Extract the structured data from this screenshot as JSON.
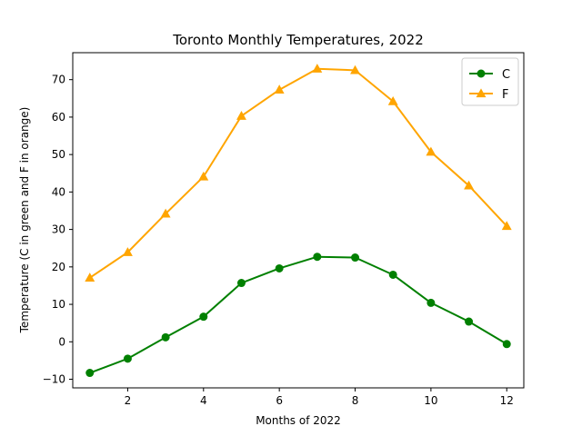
{
  "chart_data": {
    "type": "line",
    "title": "Toronto Monthly Temperatures, 2022",
    "xlabel": "Months of 2022",
    "ylabel": "Temperature (C in green and F in orange)",
    "xlim": [
      0.55,
      12.45
    ],
    "ylim": [
      -12.3,
      77.2
    ],
    "xticks": [
      2,
      4,
      6,
      8,
      10,
      12
    ],
    "yticks": [
      -10,
      0,
      10,
      20,
      30,
      40,
      50,
      60,
      70
    ],
    "grid": false,
    "legend_position": "top-right",
    "x": [
      1,
      2,
      3,
      4,
      5,
      6,
      7,
      8,
      9,
      10,
      11,
      12
    ],
    "series": [
      {
        "name": "C",
        "color": "#008000",
        "marker": "circle",
        "values": [
          -8.3,
          -4.5,
          1.2,
          6.7,
          15.7,
          19.6,
          22.7,
          22.5,
          17.9,
          10.4,
          5.4,
          -0.6
        ]
      },
      {
        "name": "F",
        "color": "#FFA500",
        "marker": "triangle",
        "values": [
          17.1,
          23.9,
          34.2,
          44.1,
          60.3,
          67.3,
          72.9,
          72.5,
          64.2,
          50.7,
          41.7,
          30.9
        ]
      }
    ]
  }
}
